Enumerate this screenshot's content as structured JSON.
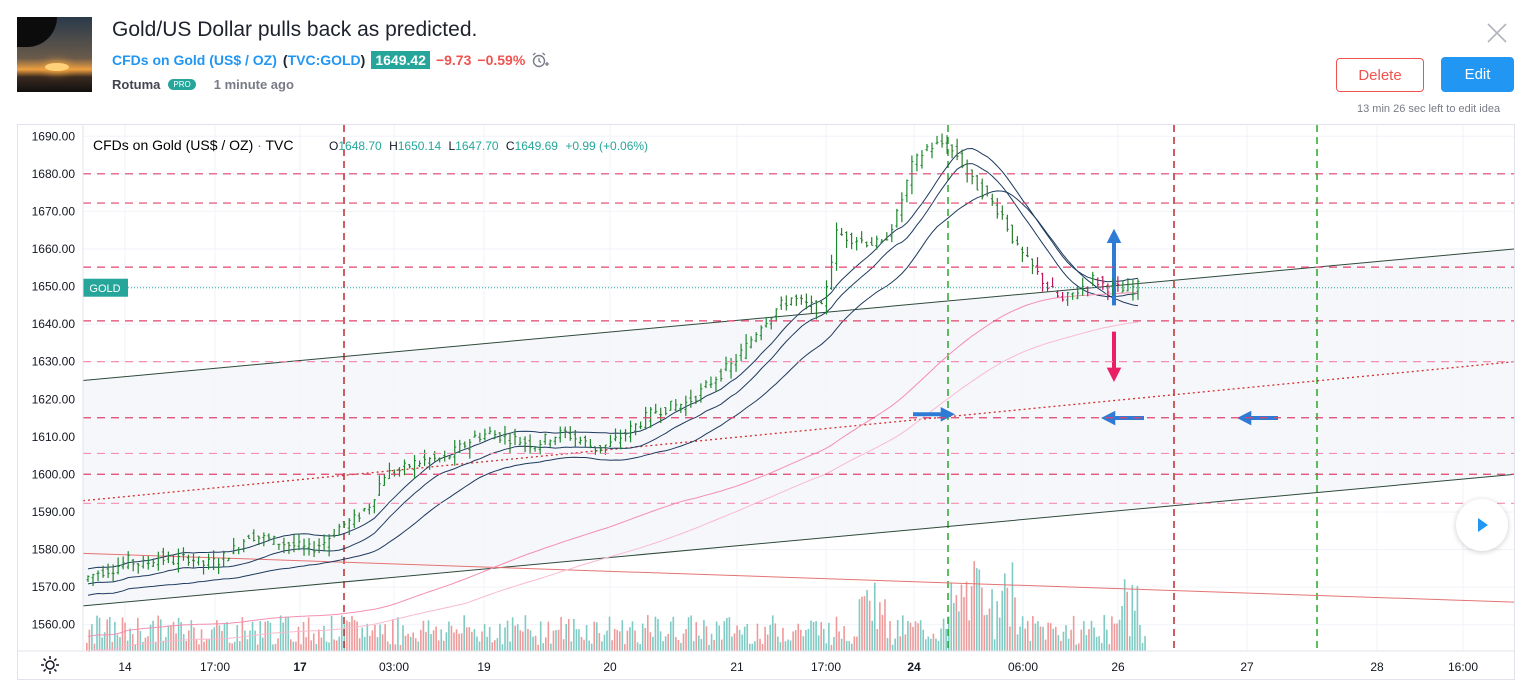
{
  "header": {
    "title": "Gold/US Dollar pulls back as predicted.",
    "symbol_link": "CFDs on Gold (US$ / OZ)",
    "ticker_prefix": "(",
    "ticker": "TVC:GOLD",
    "ticker_suffix": ")",
    "price": "1649.42",
    "change": "−9.73",
    "change_pct": "−0.59%",
    "author": "Rotuma",
    "badge": "PRO",
    "posted": "1 minute ago"
  },
  "actions": {
    "delete_label": "Delete",
    "edit_label": "Edit",
    "edit_note": "13 min 26 sec left to edit idea"
  },
  "legend": {
    "name": "CFDs on Gold (US$ / OZ)",
    "sep": "·",
    "exchange": "TVC",
    "o_label": "O",
    "o": "1648.70",
    "h_label": "H",
    "h": "1650.14",
    "l_label": "L",
    "l": "1647.70",
    "c_label": "C",
    "c": "1649.69",
    "change": "+0.99 (+0.06%)"
  },
  "colors": {
    "up": "#26a69a",
    "candle_up": "#1b8a2e",
    "down": "#ef5350",
    "accent": "#2196f3",
    "level_label": "#e91e63"
  },
  "chart_data": {
    "type": "candlestick",
    "symbol": "TVC:GOLD",
    "y_ticks": [
      1690.0,
      1680.0,
      1670.0,
      1660.0,
      1650.0,
      1640.0,
      1630.0,
      1620.0,
      1610.0,
      1600.0,
      1590.0,
      1580.0,
      1570.0,
      1560.0
    ],
    "ylim": [
      1553,
      1693
    ],
    "x_ticks": [
      "14",
      "17:00",
      "17",
      "03:00",
      "19",
      "20",
      "21",
      "17:00",
      "24",
      "06:00",
      "26",
      "27",
      "28",
      "16:00"
    ],
    "x_ticks_bold": [
      "17",
      "24"
    ],
    "horizontal_levels": [
      {
        "value": 1680.01,
        "label": "1680.01"
      },
      {
        "value": 1672.22,
        "label": "1672.22"
      },
      {
        "value": 1655.18,
        "label": "1655.18"
      },
      {
        "value": 1640.86,
        "label": "1640.86"
      },
      {
        "value": 1630.02,
        "label": "1630.02"
      },
      {
        "value": 1615.09,
        "label": "1615.09"
      },
      {
        "value": 1605.58,
        "label": "1605.58"
      },
      {
        "value": 1600.04,
        "label": "1600.04"
      },
      {
        "value": 1592.31,
        "label": "1592.31"
      }
    ],
    "last_price": {
      "value": 1649.69,
      "label": "1649.69",
      "tag": "GOLD"
    },
    "close_path": [
      1572,
      1574,
      1575,
      1577,
      1576,
      1578,
      1577,
      1578,
      1576,
      1577,
      1580,
      1584,
      1583,
      1582,
      1581,
      1580,
      1582,
      1586,
      1588,
      1592,
      1600,
      1601,
      1603,
      1604,
      1604,
      1607,
      1610,
      1611,
      1610,
      1609,
      1608,
      1610,
      1611,
      1609,
      1607,
      1608,
      1611,
      1614,
      1617,
      1618,
      1619,
      1622,
      1626,
      1629,
      1634,
      1640,
      1644,
      1647,
      1645,
      1644,
      1664,
      1663,
      1662,
      1661,
      1669,
      1682,
      1687,
      1688,
      1685,
      1678,
      1674,
      1669,
      1660,
      1655,
      1650,
      1646,
      1649,
      1652,
      1650,
      1649,
      1650
    ]
  }
}
